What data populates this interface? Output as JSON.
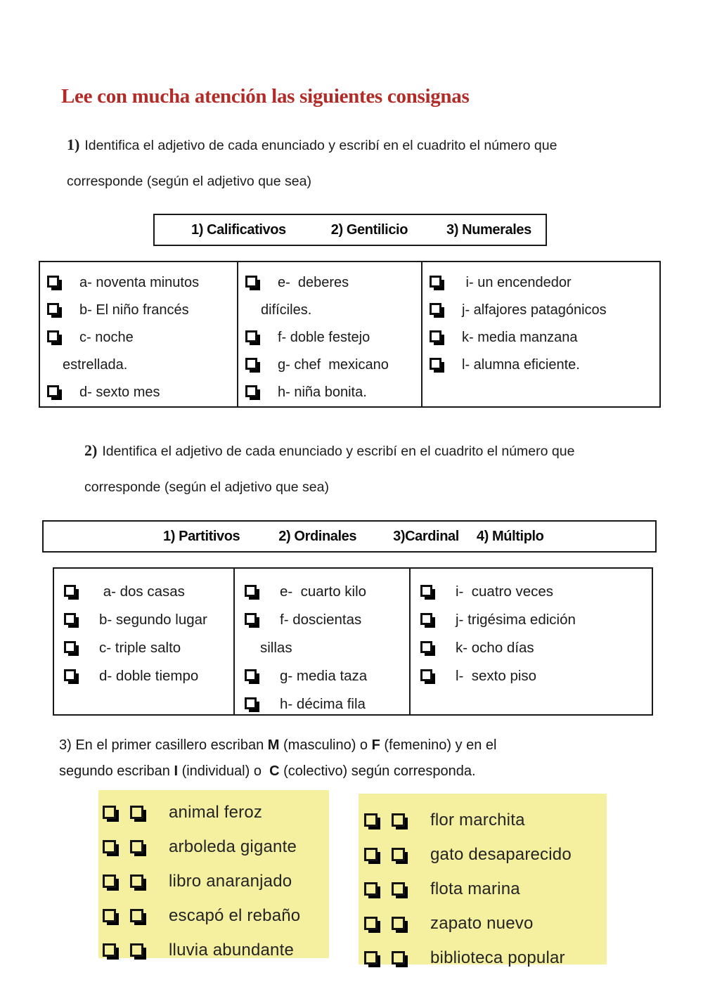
{
  "colors": {
    "accent_red": "#b32b27",
    "highlight_yellow": "#f5efa0",
    "ink": "#111111",
    "table_border": "#1a1a1a"
  },
  "icons": {
    "checkbox": "lower-right-shadowed-white-square"
  },
  "title": "Lee con mucha atención las siguientes consignas",
  "q1": {
    "num": "1)",
    "line1": "Identifica el adjetivo de cada enunciado y escribí en el cuadrito el número que",
    "line2": "corresponde (según el adjetivo que sea)",
    "header": [
      "1) Calificativos",
      "2) Gentilicio",
      "3) Numerales"
    ],
    "col1": {
      "items": [
        "a- noventa minutos",
        "b- El niño francés",
        [
          "c- noche",
          "estrellada."
        ],
        "d- sexto mes"
      ]
    },
    "col2": {
      "items": [
        [
          "e-  deberes",
          "difíciles."
        ],
        "f- doble festejo",
        "g- chef  mexicano",
        "h- niña bonita."
      ]
    },
    "col3": {
      "items": [
        " i- un encendedor",
        "j- alfajores patagónicos",
        "k- media manzana",
        "l- alumna eficiente."
      ]
    }
  },
  "q2": {
    "num": "2)",
    "line1": "Identifica el adjetivo de cada enunciado y escribí en el cuadrito el número que",
    "line2": "corresponde (según el adjetivo que sea)",
    "header": [
      "1) Partitivos",
      "2) Ordinales",
      "3)Cardinal",
      "4) Múltiplo"
    ],
    "col1": {
      "items": [
        " a- dos casas",
        "b- segundo lugar",
        "c- triple salto",
        "d- doble tiempo"
      ]
    },
    "col2": {
      "items": [
        "e-  cuarto kilo",
        [
          "f- doscientas",
          "sillas"
        ],
        "g- media taza",
        "h- décima fila"
      ]
    },
    "col3": {
      "items": [
        "i-  cuatro veces",
        "j- trigésima edición",
        "k- ocho días",
        "l-  sexto piso"
      ]
    }
  },
  "q3": {
    "line1": [
      "3) En el primer casillero escriban ",
      "M",
      " (masculino) o ",
      "F",
      " (femenino) y en el"
    ],
    "line2": [
      "segundo escriban ",
      "I",
      " (individual) o  ",
      "C",
      " (colectivo) según corresponda."
    ]
  },
  "q4": {
    "left": {
      "items": [
        "animal feroz",
        "arboleda gigante",
        "libro anaranjado",
        "escapó el rebaño",
        "lluvia abundante"
      ]
    },
    "right": {
      "items": [
        "flor marchita",
        "gato desaparecido",
        "flota marina",
        "zapato nuevo",
        "biblioteca popular"
      ]
    }
  }
}
